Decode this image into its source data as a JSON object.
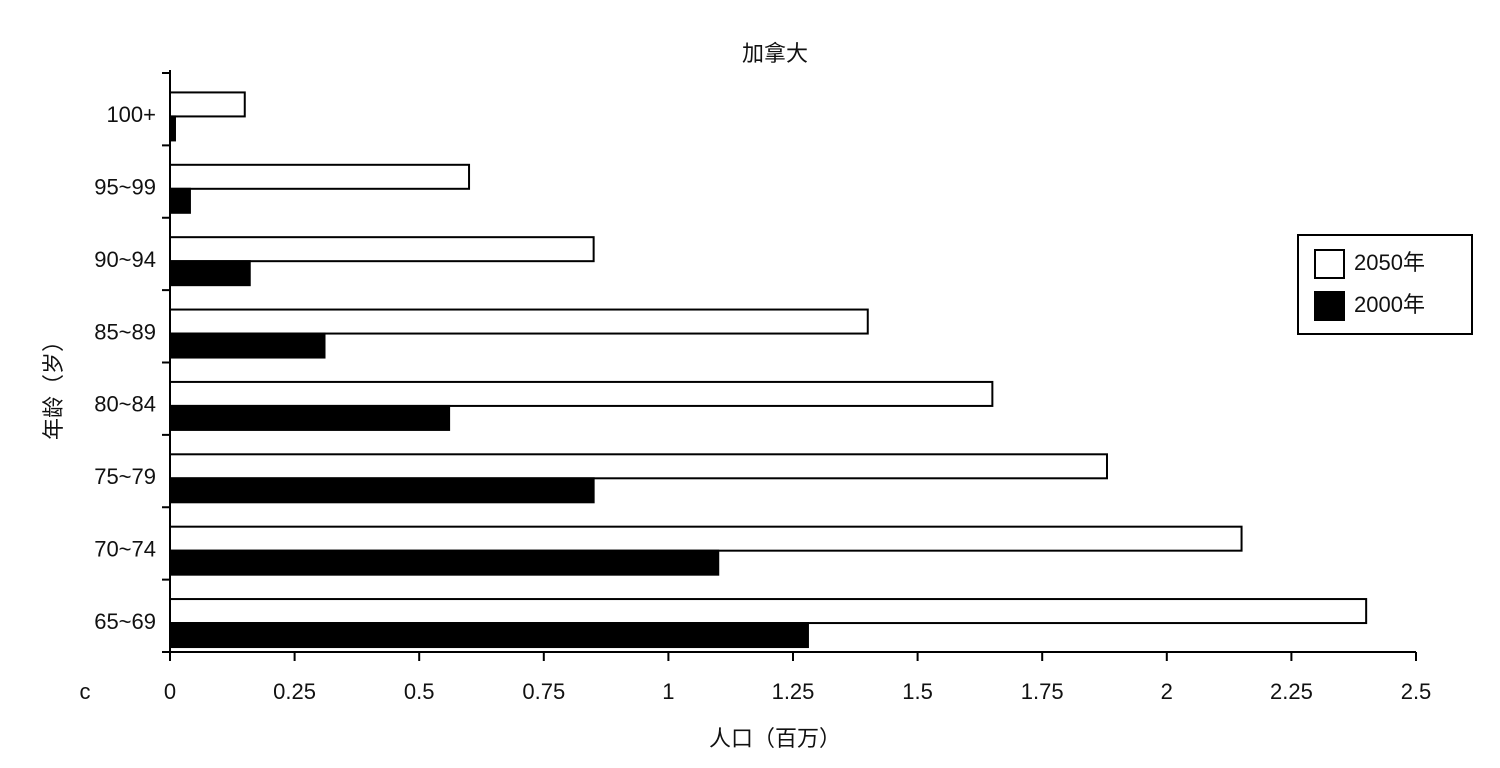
{
  "chart_data": {
    "type": "barh",
    "title": "加拿大",
    "x_label": "人口（百万）",
    "y_label": "年龄（岁）",
    "annotation": "c",
    "categories": [
      "100+",
      "95~99",
      "90~94",
      "85~89",
      "80~84",
      "75~79",
      "70~74",
      "65~69"
    ],
    "series": [
      {
        "name": "2050年",
        "color": "#ffffff",
        "values": [
          0.15,
          0.6,
          0.85,
          1.4,
          1.65,
          1.88,
          2.15,
          2.4
        ]
      },
      {
        "name": "2000年",
        "color": "#000000",
        "values": [
          0.01,
          0.04,
          0.16,
          0.31,
          0.56,
          0.85,
          1.1,
          1.28
        ]
      }
    ],
    "xlim": [
      0,
      2.5
    ],
    "xticks": [
      0,
      0.25,
      0.5,
      0.75,
      1,
      1.25,
      1.5,
      1.75,
      2,
      2.25,
      2.5
    ],
    "legend": "right"
  }
}
